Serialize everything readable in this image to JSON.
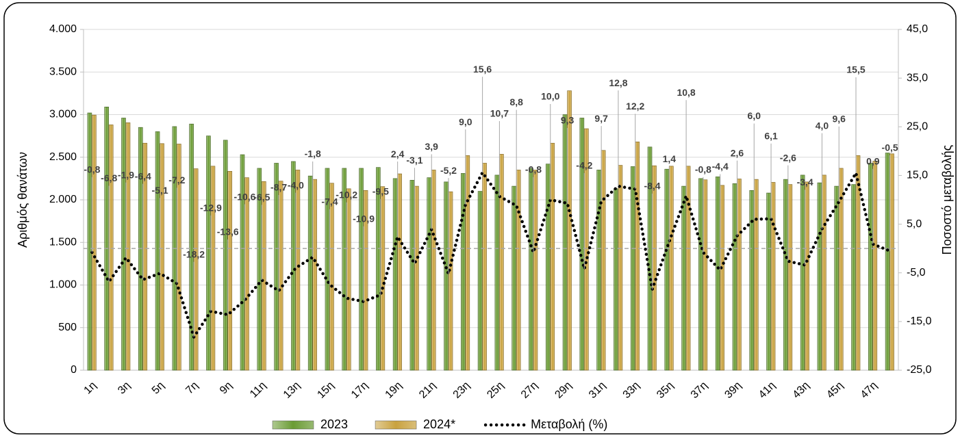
{
  "chart_data": {
    "type": "bar",
    "y_axis_label": "Αριθμός θανάτων",
    "y2_axis_label": "Ποσοστό μεταβολής",
    "categories": [
      "1η",
      null,
      "3η",
      null,
      "5η",
      null,
      "7η",
      null,
      "9η",
      null,
      "11η",
      null,
      "13η",
      null,
      "15η",
      null,
      "17η",
      null,
      "19η",
      null,
      "21η",
      null,
      "23η",
      null,
      "25η",
      null,
      "27η",
      null,
      "29η",
      null,
      "31η",
      null,
      "33η",
      null,
      "35η",
      null,
      "37η",
      null,
      "39η",
      null,
      "41η",
      null,
      "43η",
      null,
      "45η",
      null,
      "47η",
      null
    ],
    "series": [
      {
        "name": "2023",
        "color": "#6b9c35",
        "values": [
          3020,
          3090,
          2960,
          2850,
          2800,
          2860,
          2890,
          2750,
          2700,
          2530,
          2370,
          2430,
          2450,
          2280,
          2370,
          2370,
          2370,
          2380,
          2250,
          2230,
          2260,
          2210,
          2310,
          2100,
          2290,
          2160,
          2370,
          2420,
          3000,
          2960,
          2350,
          2130,
          2390,
          2620,
          2360,
          2160,
          2250,
          2270,
          2190,
          2110,
          2080,
          2240,
          2290,
          2200,
          2160,
          2180,
          2430,
          2550
        ]
      },
      {
        "name": "2024*",
        "color": "#c9a23f",
        "values": [
          2995,
          2880,
          2905,
          2665,
          2660,
          2655,
          2365,
          2395,
          2335,
          2260,
          2215,
          2220,
          2350,
          2240,
          2195,
          2130,
          2110,
          2155,
          2305,
          2160,
          2350,
          2095,
          2520,
          2430,
          2535,
          2350,
          2350,
          2665,
          3280,
          2835,
          2580,
          2405,
          2680,
          2400,
          2395,
          2395,
          2235,
          2170,
          2245,
          2240,
          2205,
          2180,
          2210,
          2290,
          2370,
          2520,
          2455,
          2540
        ]
      },
      {
        "name": "Μεταβολή (%)",
        "color": "#000000",
        "type": "line",
        "axis": "y2",
        "values": [
          -0.8,
          -6.8,
          -1.9,
          -6.4,
          -5.1,
          -7.2,
          -18.2,
          -12.9,
          -13.6,
          -10.6,
          -6.5,
          -8.7,
          -4.0,
          -1.8,
          -7.4,
          -10.2,
          -10.9,
          -9.5,
          2.4,
          -3.1,
          3.9,
          -5.2,
          9.0,
          15.6,
          10.7,
          8.8,
          -0.8,
          10.0,
          9.3,
          -4.2,
          9.7,
          12.8,
          12.2,
          -8.4,
          1.4,
          10.8,
          -0.8,
          -4.4,
          2.6,
          6.0,
          6.1,
          -2.6,
          -3.4,
          4.0,
          9.6,
          15.5,
          0.9,
          -0.5
        ],
        "value_labels": [
          "-0,8",
          "-6,8",
          "-1,9",
          "-6,4",
          "-5,1",
          "-7,2",
          "-18,2",
          "-12,9",
          "-13,6",
          "-10,6",
          "-6,5",
          "-8,7",
          "-4,0",
          "-1,8",
          "-7,4",
          "-10,2",
          "-10,9",
          "-9,5",
          "2,4",
          "-3,1",
          "3,9",
          "-5,2",
          "9,0",
          "15,6",
          "10,7",
          "8,8",
          "-0,8",
          "10,0",
          "9,3",
          "-4,2",
          "9,7",
          "12,8",
          "12,2",
          "-8,4",
          "1,4",
          "10,8",
          "-0,8",
          "-4,4",
          "2,6",
          "6,0",
          "6,1",
          "-2,6",
          "-3,4",
          "4,0",
          "9,6",
          "15,5",
          "0,9",
          "-0,5"
        ]
      }
    ],
    "ylim": [
      0,
      4000
    ],
    "yticks": [
      {
        "value": 0,
        "label": "0"
      },
      {
        "value": 500,
        "label": "500"
      },
      {
        "value": 1000,
        "label": "1.000"
      },
      {
        "value": 1500,
        "label": "1.500"
      },
      {
        "value": 2000,
        "label": "2.000"
      },
      {
        "value": 2500,
        "label": "2.500"
      },
      {
        "value": 3000,
        "label": "3.000"
      },
      {
        "value": 3500,
        "label": "3.500"
      },
      {
        "value": 4000,
        "label": "4.000"
      }
    ],
    "y2lim": [
      -25,
      45
    ],
    "y2ticks": [
      {
        "value": -25,
        "label": "-25,0"
      },
      {
        "value": -15,
        "label": "-15,0"
      },
      {
        "value": -5,
        "label": "-5,0"
      },
      {
        "value": 5,
        "label": "5,0"
      },
      {
        "value": 15,
        "label": "15,0"
      },
      {
        "value": 25,
        "label": "25,0"
      },
      {
        "value": 35,
        "label": "35,0"
      },
      {
        "value": 45,
        "label": "45,0"
      }
    ],
    "grid": true,
    "legend": "bottom"
  }
}
